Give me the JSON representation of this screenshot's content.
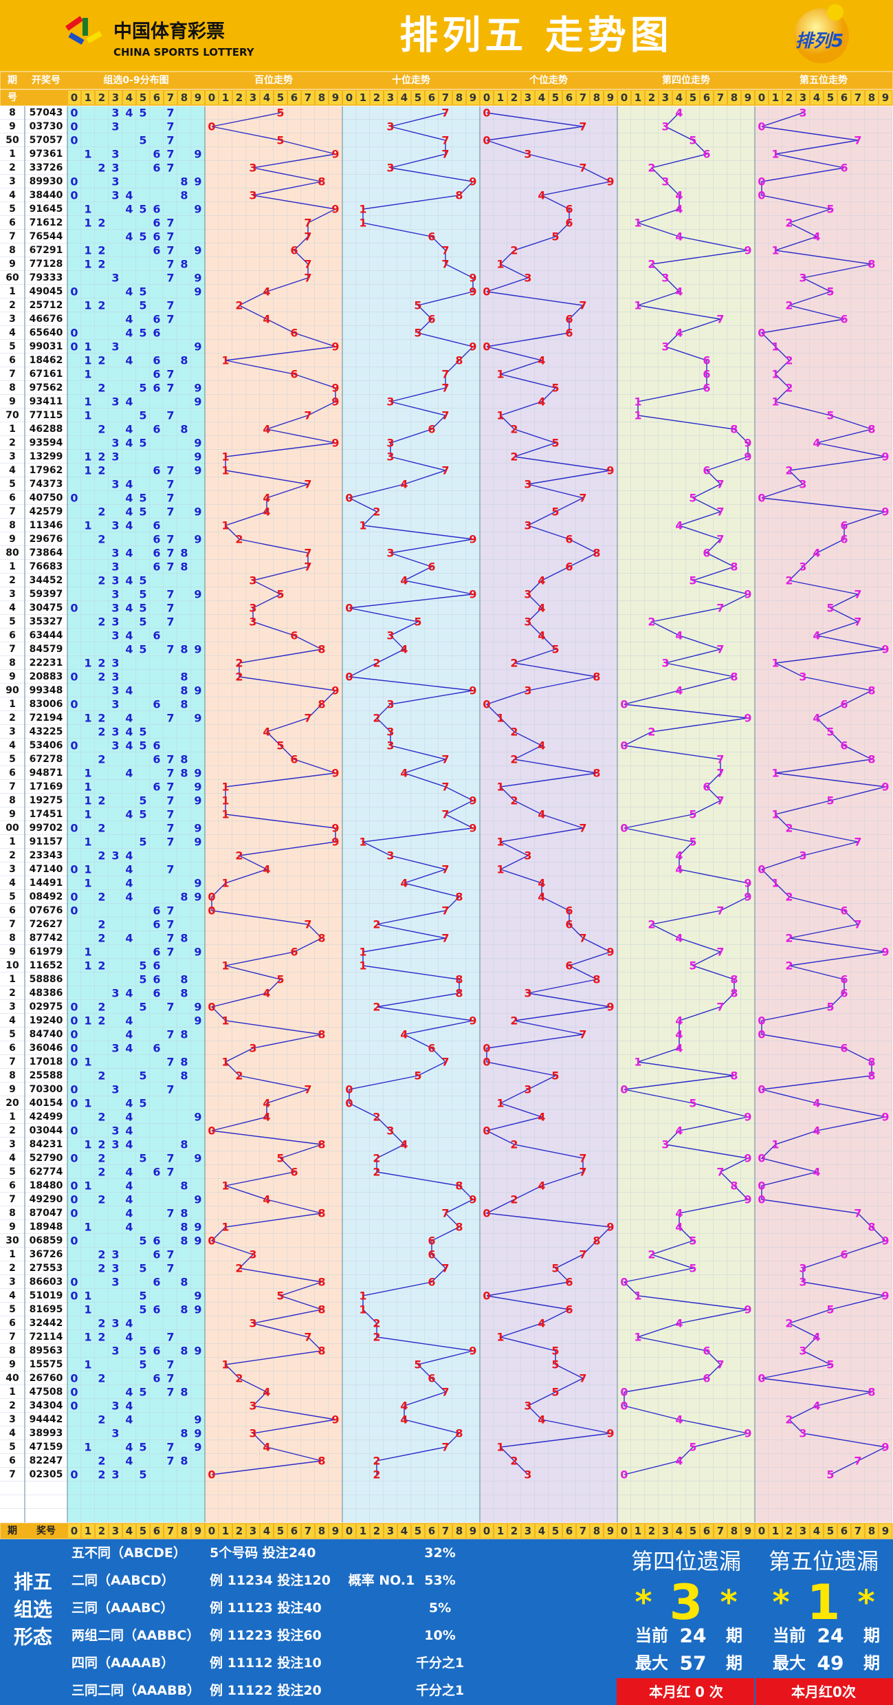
{
  "header": {
    "brand_cn": "中国体育彩票",
    "brand_en": "CHINA SPORTS LOTTERY",
    "title": "排列五 走势图",
    "badge": "排列5"
  },
  "columns": {
    "period_top": "期",
    "period_bottom": "号",
    "number": "开奖号",
    "distribution": "组选0-9分布图",
    "trends": [
      "百位走势",
      "十位走势",
      "个位走势",
      "第四位走势",
      "第五位走势"
    ],
    "footer_period": "期",
    "footer_number": "奖号"
  },
  "digits_axis": [
    0,
    1,
    2,
    3,
    4,
    5,
    6,
    7,
    8,
    9
  ],
  "trend_colors": [
    "#e8141b",
    "#e8141b",
    "#e8141b",
    "#e01ee0",
    "#e01ee0"
  ],
  "line_color": "#2a2ac8",
  "distribution_color": "#1f1fd0",
  "draws": {
    "periods": [
      "8",
      "9",
      "50",
      "1",
      "2",
      "3",
      "4",
      "5",
      "6",
      "7",
      "8",
      "9",
      "60",
      "1",
      "2",
      "3",
      "4",
      "5",
      "6",
      "7",
      "8",
      "9",
      "70",
      "1",
      "2",
      "3",
      "4",
      "5",
      "6",
      "7",
      "8",
      "9",
      "80",
      "1",
      "2",
      "3",
      "4",
      "5",
      "6",
      "7",
      "8",
      "9",
      "90",
      "1",
      "2",
      "3",
      "4",
      "5",
      "6",
      "7",
      "8",
      "9",
      "00",
      "1",
      "2",
      "3",
      "4",
      "5",
      "6",
      "7",
      "8",
      "9",
      "10",
      "1",
      "2",
      "3",
      "4",
      "5",
      "6",
      "7",
      "8",
      "9",
      "20",
      "1",
      "2",
      "3",
      "4",
      "5",
      "6",
      "7",
      "8",
      "9",
      "30",
      "1",
      "2",
      "3",
      "4",
      "5",
      "6",
      "7",
      "8",
      "9",
      "40",
      "1",
      "2",
      "3",
      "4",
      "5",
      "6",
      "7"
    ],
    "numbers": [
      "57043",
      "03730",
      "57057",
      "97361",
      "33726",
      "89930",
      "38440",
      "91645",
      "71612",
      "76544",
      "67291",
      "77128",
      "79333",
      "49045",
      "25712",
      "46676",
      "65640",
      "99031",
      "18462",
      "67161",
      "97562",
      "93411",
      "77115",
      "46288",
      "93594",
      "13299",
      "17962",
      "74373",
      "40750",
      "42579",
      "11346",
      "29676",
      "73864",
      "76683",
      "34452",
      "59397",
      "30475",
      "35327",
      "63444",
      "84579",
      "22231",
      "20883",
      "99348",
      "83006",
      "72194",
      "43225",
      "53406",
      "67278",
      "94871",
      "17169",
      "19275",
      "17451",
      "99702",
      "91157",
      "23343",
      "47140",
      "14491",
      "08492",
      "07676",
      "72627",
      "87742",
      "61979",
      "11652",
      "58886",
      "48386",
      "02975",
      "19240",
      "84740",
      "36046",
      "17018",
      "25588",
      "70300",
      "40154",
      "42499",
      "03044",
      "84231",
      "52790",
      "62774",
      "18480",
      "49290",
      "87047",
      "18948",
      "06859",
      "36726",
      "27553",
      "86603",
      "51019",
      "81695",
      "32442",
      "72114",
      "89563",
      "15575",
      "26760",
      "47508",
      "34304",
      "94442",
      "38993",
      "47159",
      "82247",
      "02305"
    ],
    "digits": [
      [
        5,
        7,
        0,
        4,
        3
      ],
      [
        0,
        3,
        7,
        3,
        0
      ],
      [
        5,
        7,
        0,
        5,
        7
      ],
      [
        9,
        7,
        3,
        6,
        1
      ],
      [
        3,
        3,
        7,
        2,
        6
      ],
      [
        8,
        9,
        9,
        3,
        0
      ],
      [
        3,
        8,
        4,
        4,
        0
      ],
      [
        9,
        1,
        6,
        4,
        5
      ],
      [
        7,
        1,
        6,
        1,
        2
      ],
      [
        7,
        6,
        5,
        4,
        4
      ],
      [
        6,
        7,
        2,
        9,
        1
      ],
      [
        7,
        7,
        1,
        2,
        8
      ],
      [
        7,
        9,
        3,
        3,
        3
      ],
      [
        4,
        9,
        0,
        4,
        5
      ],
      [
        2,
        5,
        7,
        1,
        2
      ],
      [
        4,
        6,
        6,
        7,
        6
      ],
      [
        6,
        5,
        6,
        4,
        0
      ],
      [
        9,
        9,
        0,
        3,
        1
      ],
      [
        1,
        8,
        4,
        6,
        2
      ],
      [
        6,
        7,
        1,
        6,
        1
      ],
      [
        9,
        7,
        5,
        6,
        2
      ],
      [
        9,
        3,
        4,
        1,
        1
      ],
      [
        7,
        7,
        1,
        1,
        5
      ],
      [
        4,
        6,
        2,
        8,
        8
      ],
      [
        9,
        3,
        5,
        9,
        4
      ],
      [
        1,
        3,
        2,
        9,
        9
      ],
      [
        1,
        7,
        9,
        6,
        2
      ],
      [
        7,
        4,
        3,
        7,
        3
      ],
      [
        4,
        0,
        7,
        5,
        0
      ],
      [
        4,
        2,
        5,
        7,
        9
      ],
      [
        1,
        1,
        3,
        4,
        6
      ],
      [
        2,
        9,
        6,
        7,
        6
      ],
      [
        7,
        3,
        8,
        6,
        4
      ],
      [
        7,
        6,
        6,
        8,
        3
      ],
      [
        3,
        4,
        4,
        5,
        2
      ],
      [
        5,
        9,
        3,
        9,
        7
      ],
      [
        3,
        0,
        4,
        7,
        5
      ],
      [
        3,
        5,
        3,
        2,
        7
      ],
      [
        6,
        3,
        4,
        4,
        4
      ],
      [
        8,
        4,
        5,
        7,
        9
      ],
      [
        2,
        2,
        2,
        3,
        1
      ],
      [
        2,
        0,
        8,
        8,
        3
      ],
      [
        9,
        9,
        3,
        4,
        8
      ],
      [
        8,
        3,
        0,
        0,
        6
      ],
      [
        7,
        2,
        1,
        9,
        4
      ],
      [
        4,
        3,
        2,
        2,
        5
      ],
      [
        5,
        3,
        4,
        0,
        6
      ],
      [
        6,
        7,
        2,
        7,
        8
      ],
      [
        9,
        4,
        8,
        7,
        1
      ],
      [
        1,
        7,
        1,
        6,
        9
      ],
      [
        1,
        9,
        2,
        7,
        5
      ],
      [
        1,
        7,
        4,
        5,
        1
      ],
      [
        9,
        9,
        7,
        0,
        2
      ],
      [
        9,
        1,
        1,
        5,
        7
      ],
      [
        2,
        3,
        3,
        4,
        3
      ],
      [
        4,
        7,
        1,
        4,
        0
      ],
      [
        1,
        4,
        4,
        9,
        1
      ],
      [
        0,
        8,
        4,
        9,
        2
      ],
      [
        0,
        7,
        6,
        7,
        6
      ],
      [
        7,
        2,
        6,
        2,
        7
      ],
      [
        8,
        7,
        7,
        4,
        2
      ],
      [
        6,
        1,
        9,
        7,
        9
      ],
      [
        1,
        1,
        6,
        5,
        2
      ],
      [
        5,
        8,
        8,
        8,
        6
      ],
      [
        4,
        8,
        3,
        8,
        6
      ],
      [
        0,
        2,
        9,
        7,
        5
      ],
      [
        1,
        9,
        2,
        4,
        0
      ],
      [
        8,
        4,
        7,
        4,
        0
      ],
      [
        3,
        6,
        0,
        4,
        6
      ],
      [
        1,
        7,
        0,
        1,
        8
      ],
      [
        2,
        5,
        5,
        8,
        8
      ],
      [
        7,
        0,
        3,
        0,
        0
      ],
      [
        4,
        0,
        1,
        5,
        4
      ],
      [
        4,
        2,
        4,
        9,
        9
      ],
      [
        0,
        3,
        0,
        4,
        4
      ],
      [
        8,
        4,
        2,
        3,
        1
      ],
      [
        5,
        2,
        7,
        9,
        0
      ],
      [
        6,
        2,
        7,
        7,
        4
      ],
      [
        1,
        8,
        4,
        8,
        0
      ],
      [
        4,
        9,
        2,
        9,
        0
      ],
      [
        8,
        7,
        0,
        4,
        7
      ],
      [
        1,
        8,
        9,
        4,
        8
      ],
      [
        0,
        6,
        8,
        5,
        9
      ],
      [
        3,
        6,
        7,
        2,
        6
      ],
      [
        2,
        7,
        5,
        5,
        3
      ],
      [
        8,
        6,
        6,
        0,
        3
      ],
      [
        5,
        1,
        0,
        1,
        9
      ],
      [
        8,
        1,
        6,
        9,
        5
      ],
      [
        3,
        2,
        4,
        4,
        2
      ],
      [
        7,
        2,
        1,
        1,
        4
      ],
      [
        8,
        9,
        5,
        6,
        3
      ],
      [
        1,
        5,
        5,
        7,
        5
      ],
      [
        2,
        6,
        7,
        6,
        0
      ],
      [
        4,
        7,
        5,
        0,
        8
      ],
      [
        3,
        4,
        3,
        0,
        4
      ],
      [
        9,
        4,
        4,
        4,
        2
      ],
      [
        3,
        8,
        9,
        9,
        3
      ],
      [
        4,
        7,
        1,
        5,
        9
      ],
      [
        8,
        2,
        2,
        4,
        7
      ],
      [
        0,
        2,
        3,
        0,
        5
      ]
    ]
  },
  "summary": {
    "label": [
      "排五",
      "组选",
      "形态"
    ],
    "rows": [
      {
        "name": "五不同（ABCDE）",
        "example": "5个号码 投注240",
        "prob": "32%"
      },
      {
        "name": "二同（AABCD）",
        "example": "例 11234 投注120",
        "note": "概率 NO.1",
        "prob": "53%"
      },
      {
        "name": "三同（AAABC）",
        "example": "例 11123 投注40",
        "prob": "5%"
      },
      {
        "name": "两组二同（AABBC）",
        "example": "例 11223 投注60",
        "prob": "10%"
      },
      {
        "name": "四同（AAAAB）",
        "example": "例 11112 投注10",
        "prob": "千分之1"
      },
      {
        "name": "三同二同（AAABB）",
        "example": "例 11122 投注20",
        "prob": "千分之1"
      }
    ]
  },
  "misses": [
    {
      "label": "第四位遗漏",
      "marker": "*",
      "value": 3,
      "current_label": "当前",
      "current": 24,
      "max_label": "最大",
      "max": 57,
      "unit": "期",
      "red": "本月红 0 次"
    },
    {
      "label": "第五位遗漏",
      "marker": "*",
      "value": 1,
      "current_label": "当前",
      "current": 24,
      "max_label": "最大",
      "max": 49,
      "unit": "期",
      "red": "本月红0次"
    }
  ]
}
